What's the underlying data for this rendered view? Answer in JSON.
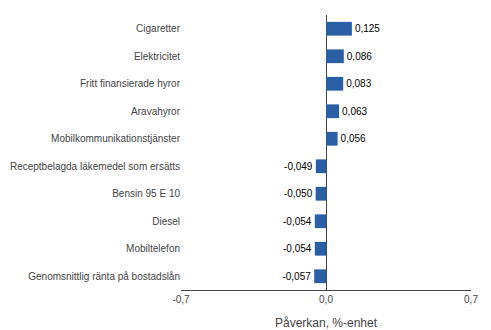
{
  "chart_data": {
    "type": "bar",
    "orientation": "horizontal",
    "categories": [
      "Genomsnittlig ränta på bostadslån",
      "Mobiltelefon",
      "Diesel",
      "Bensin 95 E 10",
      "Receptbelagda läkemedel som ersätts",
      "Mobilkommunikationstjänster",
      "Aravahyror",
      "Fritt finansierade hyror",
      "Elektricitet",
      "Cigaretter"
    ],
    "values": [
      -0.057,
      -0.054,
      -0.054,
      -0.05,
      -0.049,
      0.056,
      0.063,
      0.083,
      0.086,
      0.125
    ],
    "value_labels": [
      "-0,057",
      "-0,054",
      "-0,054",
      "-0,050",
      "-0,049",
      "0,056",
      "0,063",
      "0,083",
      "0,086",
      "0,125"
    ],
    "data_labels": true,
    "color": "#2b5fa5",
    "xlabel": "Påverkan, %-enhet",
    "xlim": [
      -0.7,
      0.7
    ],
    "xticks": [
      {
        "value": -0.7,
        "label": "-0,7"
      },
      {
        "value": 0.0,
        "label": "0,0"
      },
      {
        "value": 0.7,
        "label": "0,7"
      }
    ],
    "grid": true
  }
}
